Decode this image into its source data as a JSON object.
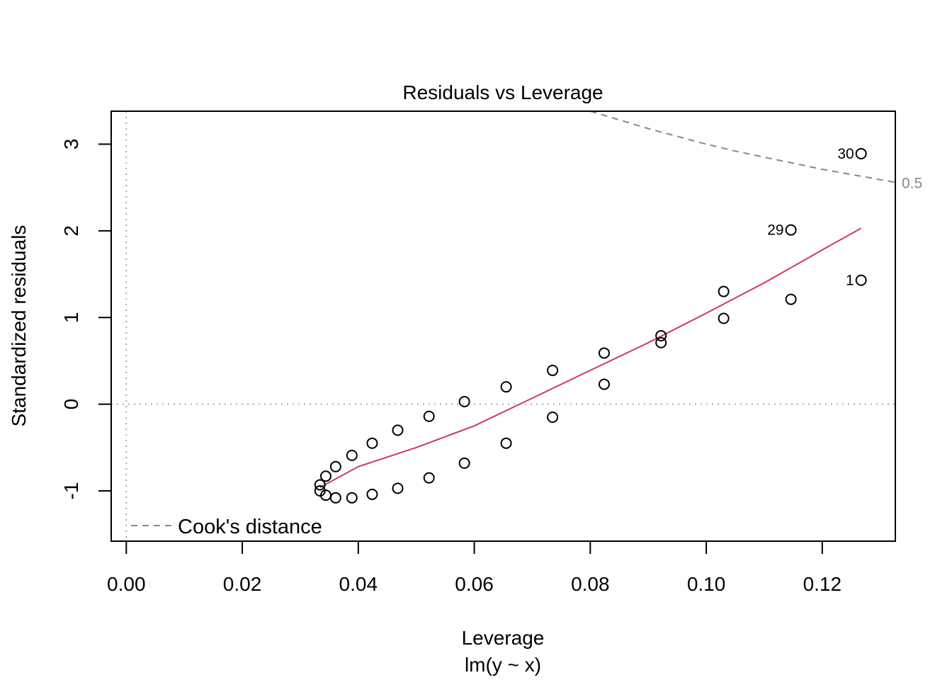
{
  "chart_data": {
    "type": "scatter",
    "title": "Residuals vs Leverage",
    "xlabel": "Leverage",
    "sublabel": "lm(y ~ x)",
    "ylabel": "Standardized residuals",
    "xlim": [
      -0.0026,
      0.1326
    ],
    "ylim": [
      -1.58,
      3.38
    ],
    "x_ticks": [
      {
        "value": 0.0,
        "label": "0.00"
      },
      {
        "value": 0.02,
        "label": "0.02"
      },
      {
        "value": 0.04,
        "label": "0.04"
      },
      {
        "value": 0.06,
        "label": "0.06"
      },
      {
        "value": 0.08,
        "label": "0.08"
      },
      {
        "value": 0.1,
        "label": "0.10"
      },
      {
        "value": 0.12,
        "label": "0.12"
      }
    ],
    "y_ticks": [
      {
        "value": -1,
        "label": "-1"
      },
      {
        "value": 0,
        "label": "0"
      },
      {
        "value": 1,
        "label": "1"
      },
      {
        "value": 2,
        "label": "2"
      },
      {
        "value": 3,
        "label": "3"
      }
    ],
    "reference_lines": {
      "x": 0,
      "y": 0,
      "style": "dotted",
      "color": "#aaaaaa"
    },
    "points": [
      {
        "x": 0.1267,
        "y": 1.43,
        "label": "1"
      },
      {
        "x": 0.1146,
        "y": 1.21
      },
      {
        "x": 0.103,
        "y": 0.99
      },
      {
        "x": 0.0922,
        "y": 0.71
      },
      {
        "x": 0.0824,
        "y": 0.23
      },
      {
        "x": 0.0735,
        "y": -0.15
      },
      {
        "x": 0.0655,
        "y": -0.45
      },
      {
        "x": 0.0583,
        "y": -0.68
      },
      {
        "x": 0.0522,
        "y": -0.85
      },
      {
        "x": 0.0468,
        "y": -0.97
      },
      {
        "x": 0.0424,
        "y": -1.04
      },
      {
        "x": 0.0389,
        "y": -1.08
      },
      {
        "x": 0.0361,
        "y": -1.08
      },
      {
        "x": 0.0344,
        "y": -1.05
      },
      {
        "x": 0.0334,
        "y": -1.0
      },
      {
        "x": 0.0334,
        "y": -0.93
      },
      {
        "x": 0.0344,
        "y": -0.83
      },
      {
        "x": 0.0361,
        "y": -0.72
      },
      {
        "x": 0.0389,
        "y": -0.59
      },
      {
        "x": 0.0424,
        "y": -0.45
      },
      {
        "x": 0.0468,
        "y": -0.3
      },
      {
        "x": 0.0522,
        "y": -0.14
      },
      {
        "x": 0.0583,
        "y": 0.03
      },
      {
        "x": 0.0655,
        "y": 0.2
      },
      {
        "x": 0.0735,
        "y": 0.39
      },
      {
        "x": 0.0824,
        "y": 0.59
      },
      {
        "x": 0.0922,
        "y": 0.79
      },
      {
        "x": 0.103,
        "y": 1.3
      },
      {
        "x": 0.1146,
        "y": 2.01,
        "label": "29"
      },
      {
        "x": 0.1267,
        "y": 2.89,
        "label": "30"
      }
    ],
    "smooth_line": {
      "color": "#d03a5a",
      "x": [
        0.0334,
        0.04,
        0.05,
        0.06,
        0.07,
        0.08,
        0.09,
        0.1,
        0.11,
        0.12,
        0.1267
      ],
      "y": [
        -0.96,
        -0.72,
        -0.5,
        -0.25,
        0.07,
        0.39,
        0.71,
        1.05,
        1.4,
        1.78,
        2.03
      ]
    },
    "cooks_distance": {
      "color": "#888888",
      "style": "dashed",
      "level": 0.5,
      "level_label": "0.5",
      "x": [
        0.08,
        0.085,
        0.09,
        0.095,
        0.1,
        0.105,
        0.11,
        0.115,
        0.12,
        0.125,
        0.1326
      ],
      "y": [
        3.38,
        3.28,
        3.18,
        3.09,
        3.0,
        2.92,
        2.85,
        2.78,
        2.71,
        2.65,
        2.56
      ]
    },
    "legend": {
      "position": "bottom-left",
      "label": "Cook's distance",
      "color": "#888888"
    }
  }
}
